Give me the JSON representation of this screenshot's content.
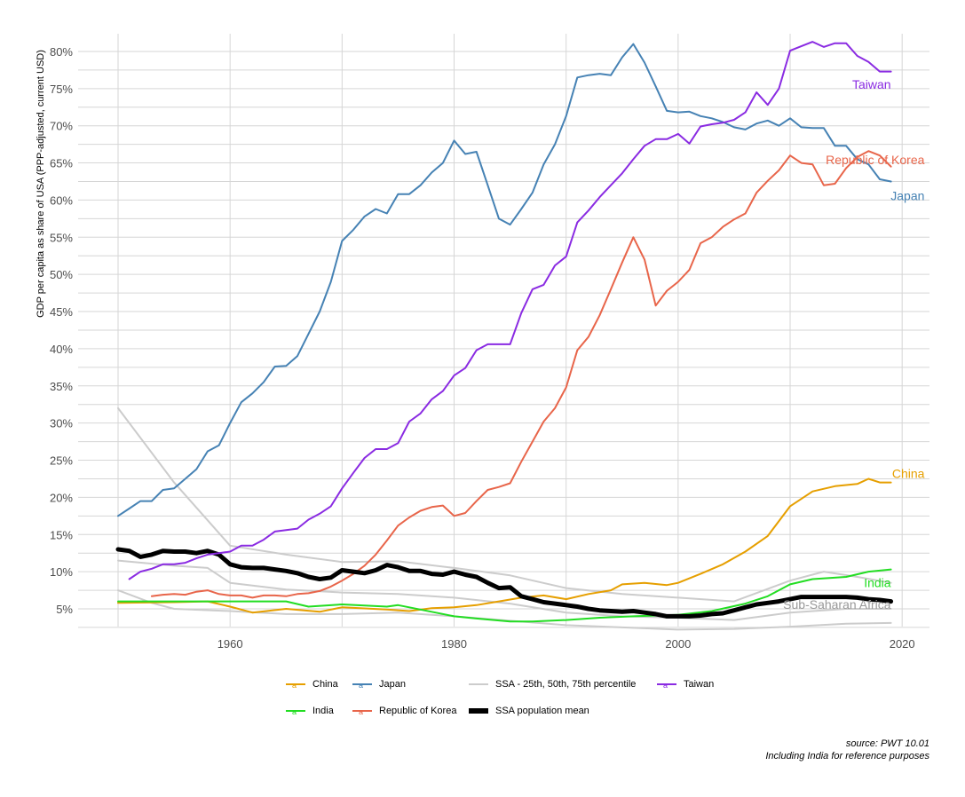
{
  "chart_data": {
    "type": "line",
    "ylabel": "GDP per capita as share of USA (PPP-adjusted, current USD)",
    "xlabel": "",
    "xlim": [
      1947,
      2022
    ],
    "ylim": [
      2.5,
      82
    ],
    "x_ticks": [
      1960,
      1980,
      2000,
      2020
    ],
    "y_ticks": [
      5,
      10,
      15,
      20,
      25,
      30,
      35,
      40,
      45,
      50,
      55,
      60,
      65,
      70,
      75,
      80
    ],
    "y_tick_labels": [
      "5%",
      "10%",
      "15%",
      "20%",
      "25%",
      "30%",
      "35%",
      "40%",
      "45%",
      "50%",
      "55%",
      "60%",
      "65%",
      "70%",
      "75%",
      "80%"
    ],
    "grid": true,
    "legend_position": "bottom",
    "series": [
      {
        "name": "SSA - 25th, 50th, 75th percentile",
        "key": "p75",
        "color": "#cccccc",
        "width": 2,
        "x": [
          1950,
          1955,
          1960,
          1965,
          1970,
          1975,
          1980,
          1985,
          1990,
          1995,
          2000,
          2005,
          2010,
          2013,
          2016,
          2019
        ],
        "y": [
          32,
          22,
          13.5,
          12.3,
          11.3,
          11.4,
          10.5,
          9.5,
          7.8,
          7,
          6.5,
          6,
          8.8,
          10,
          9.3,
          8.5
        ]
      },
      {
        "name": "SSA - 25th, 50th, 75th percentile",
        "key": "p50",
        "color": "#cccccc",
        "width": 2,
        "x": [
          1950,
          1955,
          1958,
          1960,
          1965,
          1970,
          1975,
          1980,
          1985,
          1990,
          1995,
          2000,
          2005,
          2010,
          2015,
          2019
        ],
        "y": [
          11.5,
          10.8,
          10.5,
          8.5,
          7.6,
          7.2,
          7,
          6.5,
          5.7,
          4.5,
          4,
          3.8,
          3.5,
          4.5,
          5,
          5
        ]
      },
      {
        "name": "SSA - 25th, 50th, 75th percentile",
        "key": "p25",
        "color": "#cccccc",
        "width": 2,
        "x": [
          1950,
          1953,
          1955,
          1960,
          1965,
          1970,
          1975,
          1980,
          1985,
          1990,
          1995,
          2000,
          2005,
          2010,
          2015,
          2019
        ],
        "y": [
          7.5,
          5.8,
          5,
          4.7,
          4.3,
          4.3,
          4.5,
          4,
          3.4,
          2.8,
          2.5,
          2.2,
          2.3,
          2.6,
          3,
          3.1
        ]
      },
      {
        "name": "China",
        "color": "#E69F00",
        "width": 2,
        "x": [
          1950,
          1955,
          1958,
          1960,
          1962,
          1965,
          1968,
          1970,
          1974,
          1976,
          1978,
          1980,
          1982,
          1984,
          1986,
          1988,
          1990,
          1992,
          1994,
          1995,
          1997,
          1999,
          2000,
          2002,
          2004,
          2006,
          2008,
          2010,
          2012,
          2014,
          2016,
          2017,
          2018,
          2019
        ],
        "y": [
          5.8,
          5.9,
          6,
          5.3,
          4.5,
          5,
          4.6,
          5.2,
          4.9,
          4.7,
          5.1,
          5.2,
          5.5,
          6,
          6.5,
          6.8,
          6.3,
          7,
          7.5,
          8.3,
          8.5,
          8.2,
          8.5,
          9.7,
          11,
          12.7,
          14.8,
          18.8,
          20.8,
          21.5,
          21.8,
          22.5,
          22,
          22
        ]
      },
      {
        "name": "Japan",
        "color": "#4682B4",
        "width": 2,
        "start": 1950,
        "values": [
          17.5,
          18.5,
          19.5,
          19.5,
          21,
          21.2,
          22.5,
          23.8,
          26.2,
          27,
          30,
          32.8,
          34,
          35.5,
          37.6,
          37.7,
          39,
          42,
          45,
          49,
          54.5,
          56,
          57.8,
          58.8,
          58.2,
          60.8,
          60.8,
          62,
          63.7,
          65,
          68,
          66.2,
          66.5,
          62,
          57.5,
          56.7,
          58.8,
          61,
          64.8,
          67.5,
          71.3,
          76.5,
          76.8,
          77,
          76.8,
          79.2,
          81,
          78.5,
          75.3,
          72,
          71.8,
          71.9,
          71.3,
          71,
          70.5,
          69.8,
          69.5,
          70.3,
          70.7,
          70,
          71,
          69.8,
          69.7,
          69.7,
          67.3,
          67.3,
          65.5,
          64.8,
          62.8,
          62.5
        ]
      },
      {
        "name": "India",
        "color": "#22DD22",
        "width": 2,
        "x": [
          1950,
          1955,
          1960,
          1965,
          1967,
          1970,
          1974,
          1975,
          1977,
          1980,
          1982,
          1985,
          1987,
          1990,
          1993,
          1996,
          2000,
          2003,
          2006,
          2008,
          2010,
          2012,
          2015,
          2017,
          2019
        ],
        "y": [
          6,
          6,
          6,
          6,
          5.3,
          5.6,
          5.3,
          5.5,
          4.9,
          4,
          3.7,
          3.3,
          3.3,
          3.5,
          3.8,
          4,
          4.2,
          4.7,
          5.7,
          6.7,
          8.3,
          9,
          9.3,
          10,
          10.3
        ]
      },
      {
        "name": "Republic of Korea",
        "color": "#E8654A",
        "width": 2,
        "start": 1953,
        "values": [
          6.7,
          6.9,
          7,
          6.9,
          7.3,
          7.5,
          7,
          6.8,
          6.8,
          6.5,
          6.8,
          6.8,
          6.7,
          7,
          7.1,
          7.4,
          8,
          8.8,
          9.7,
          10.8,
          12.3,
          14.2,
          16.2,
          17.3,
          18.2,
          18.7,
          18.9,
          17.5,
          17.9,
          19.5,
          21,
          21.4,
          21.9,
          24.8,
          27.5,
          30.2,
          32,
          34.8,
          39.8,
          41.6,
          44.5,
          48,
          51.6,
          55,
          52,
          45.8,
          47.8,
          49,
          50.6,
          54.2,
          55,
          56.4,
          57.4,
          58.2,
          61,
          62.6,
          64,
          66,
          65,
          64.8,
          62,
          62.2,
          64.3,
          65.8,
          66.6,
          66,
          64.5
        ]
      },
      {
        "name": "SSA population mean",
        "color": "#000000",
        "width": 5,
        "start": 1950,
        "values": [
          13,
          12.8,
          12,
          12.3,
          12.8,
          12.7,
          12.7,
          12.5,
          12.8,
          12.3,
          11,
          10.6,
          10.5,
          10.5,
          10.3,
          10.1,
          9.8,
          9.3,
          9,
          9.2,
          10.2,
          10,
          9.8,
          10.2,
          10.9,
          10.6,
          10.1,
          10.1,
          9.7,
          9.6,
          10,
          9.6,
          9.3,
          8.5,
          7.8,
          7.9,
          6.7,
          6.3,
          5.9,
          5.7,
          5.5,
          5.3,
          5,
          4.8,
          4.7,
          4.6,
          4.7,
          4.5,
          4.3,
          4,
          4,
          4,
          4.1,
          4.3,
          4.4,
          4.8,
          5.2,
          5.6,
          5.8,
          6,
          6.3,
          6.6,
          6.6,
          6.6,
          6.6,
          6.6,
          6.5,
          6.3,
          6.2,
          6
        ]
      },
      {
        "name": "Taiwan",
        "color": "#8A2BE2",
        "width": 2,
        "start": 1951,
        "values": [
          9,
          10,
          10.4,
          11,
          11,
          11.2,
          11.8,
          12.3,
          12.5,
          12.7,
          13.5,
          13.5,
          14.3,
          15.4,
          15.6,
          15.8,
          17,
          17.8,
          18.8,
          21.2,
          23.3,
          25.3,
          26.5,
          26.5,
          27.3,
          30.2,
          31.3,
          33.2,
          34.3,
          36.4,
          37.4,
          39.8,
          40.6,
          40.6,
          40.6,
          44.8,
          48,
          48.6,
          51.2,
          52.4,
          57,
          58.6,
          60.4,
          62,
          63.6,
          65.5,
          67.3,
          68.2,
          68.2,
          68.9,
          67.6,
          69.9,
          70.2,
          70.4,
          70.8,
          71.8,
          74.5,
          72.8,
          75,
          80.1,
          80.7,
          81.3,
          80.6,
          81.1,
          81.1,
          79.4,
          78.6,
          77.3,
          77.3
        ]
      }
    ],
    "annotations": [
      {
        "text": "Taiwan",
        "color": "#8A2BE2",
        "x": 2019,
        "y": 75.6
      },
      {
        "text": "Republic of Korea",
        "color": "#E8654A",
        "x": 2022,
        "y": 65.4
      },
      {
        "text": "Japan",
        "color": "#4682B4",
        "x": 2022,
        "y": 60.6
      },
      {
        "text": "China",
        "color": "#E69F00",
        "x": 2022,
        "y": 23.2
      },
      {
        "text": "India",
        "color": "#22DD22",
        "x": 2019,
        "y": 8.5
      },
      {
        "text": "Sub-Saharan Africa",
        "color": "#999999",
        "x": 2019,
        "y": 5.6
      }
    ],
    "legend": [
      {
        "label": "China",
        "color": "#E69F00",
        "type": "a"
      },
      {
        "label": "Japan",
        "color": "#4682B4",
        "type": "a"
      },
      {
        "label": "SSA - 25th, 50th, 75th percentile",
        "color": "#cccccc",
        "type": "line"
      },
      {
        "label": "Taiwan",
        "color": "#8A2BE2",
        "type": "a"
      },
      {
        "label": "India",
        "color": "#22DD22",
        "type": "a"
      },
      {
        "label": "Republic of Korea",
        "color": "#E8654A",
        "type": "a"
      },
      {
        "label": "SSA population mean",
        "color": "#000000",
        "type": "thick"
      }
    ],
    "caption": [
      "source: PWT 10.01",
      "Including India for reference purposes"
    ]
  }
}
